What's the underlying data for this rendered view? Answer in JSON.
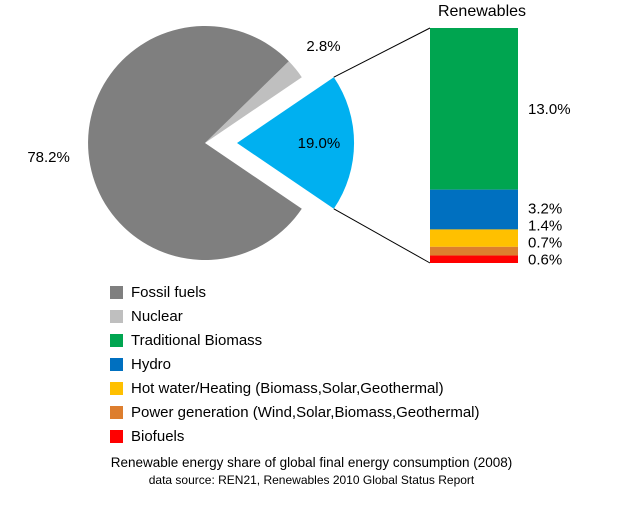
{
  "caption": {
    "line1": "Renewable energy share of global final energy consumption (2008)",
    "line2": "data source: REN21, Renewables 2010 Global Status Report"
  },
  "chart_data": {
    "type": "pie",
    "subtype": "bar-of-pie",
    "title": "Renewable energy share of global final energy consumption (2008)",
    "source": "data source: REN21, Renewables 2010 Global Status Report",
    "legend_position": "bottom-left",
    "pie": {
      "slices": [
        {
          "label": "Fossil fuels",
          "value": 78.2,
          "display": "78.2%",
          "color": "#7f7f7f",
          "exploded": false
        },
        {
          "label": "Nuclear",
          "value": 2.8,
          "display": "2.8%",
          "color": "#bfbfbf",
          "exploded": false
        },
        {
          "label": "Renewables",
          "value": 19.0,
          "display": "19.0%",
          "color": "#00b0f0",
          "exploded": true
        }
      ]
    },
    "bar": {
      "title": "Renewables",
      "segments": [
        {
          "label": "Traditional Biomass",
          "value": 13.0,
          "display": "13.0%",
          "color": "#00a550"
        },
        {
          "label": "Hydro",
          "value": 3.2,
          "display": "3.2%",
          "color": "#0070c0"
        },
        {
          "label": "Hot water/Heating (Biomass,Solar,Geothermal)",
          "value": 1.4,
          "display": "1.4%",
          "color": "#ffc000"
        },
        {
          "label": "Power generation (Wind,Solar,Biomass,Geothermal)",
          "value": 0.7,
          "display": "0.7%",
          "color": "#dd7e2e"
        },
        {
          "label": "Biofuels",
          "value": 0.6,
          "display": "0.6%",
          "color": "#ff0000"
        }
      ]
    },
    "legend": [
      {
        "label": "Fossil fuels",
        "color": "#7f7f7f"
      },
      {
        "label": "Nuclear",
        "color": "#bfbfbf"
      },
      {
        "label": "Traditional Biomass",
        "color": "#00a550"
      },
      {
        "label": "Hydro",
        "color": "#0070c0"
      },
      {
        "label": "Hot water/Heating (Biomass,Solar,Geothermal)",
        "color": "#ffc000"
      },
      {
        "label": "Power generation (Wind,Solar,Biomass,Geothermal)",
        "color": "#dd7e2e"
      },
      {
        "label": "Biofuels",
        "color": "#ff0000"
      }
    ]
  }
}
